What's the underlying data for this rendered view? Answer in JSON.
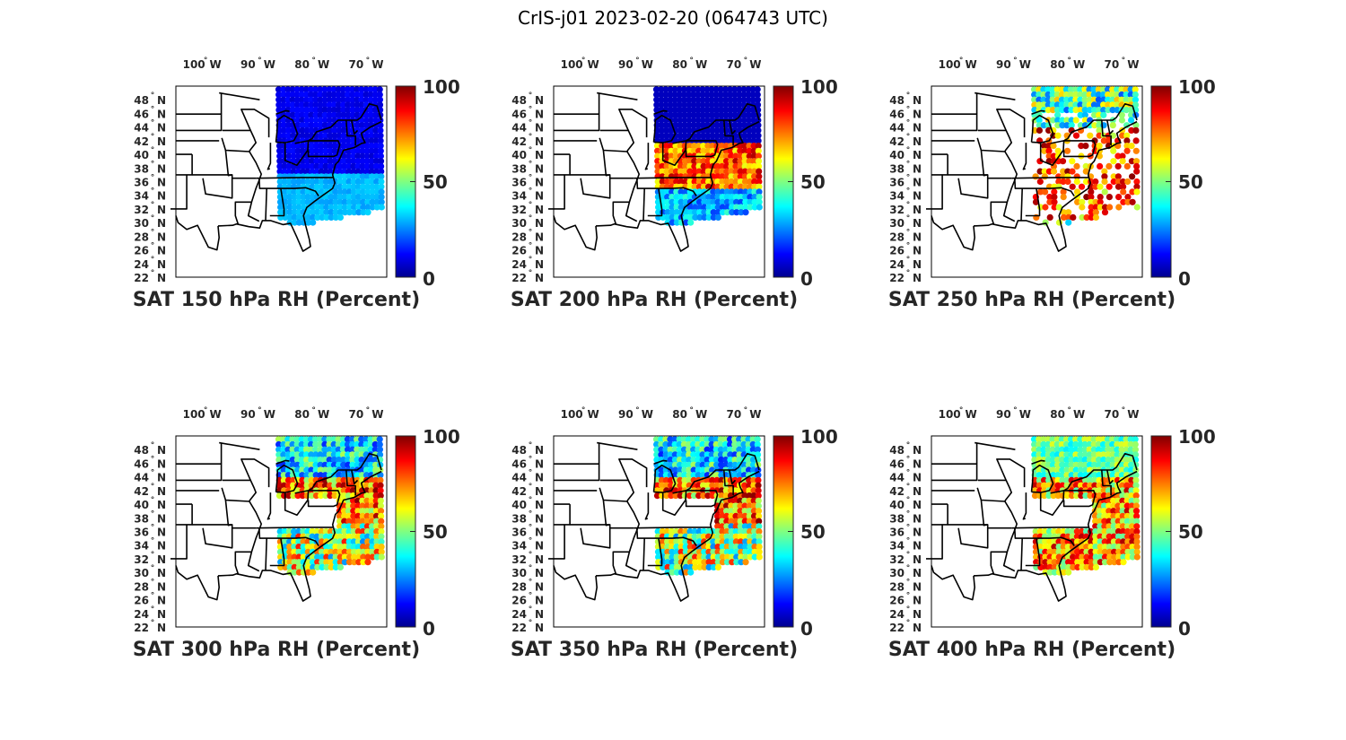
{
  "figure_title": "CrIS-j01 2023-02-20 (064743 UTC)",
  "lon_ticks": [
    {
      "deg": "100",
      "hemi": "W"
    },
    {
      "deg": "90",
      "hemi": "W"
    },
    {
      "deg": "80",
      "hemi": "W"
    },
    {
      "deg": "70",
      "hemi": "W"
    }
  ],
  "lat_ticks": [
    {
      "deg": "48",
      "hemi": "N"
    },
    {
      "deg": "46",
      "hemi": "N"
    },
    {
      "deg": "44",
      "hemi": "N"
    },
    {
      "deg": "42",
      "hemi": "N"
    },
    {
      "deg": "40",
      "hemi": "N"
    },
    {
      "deg": "38",
      "hemi": "N"
    },
    {
      "deg": "36",
      "hemi": "N"
    },
    {
      "deg": "34",
      "hemi": "N"
    },
    {
      "deg": "32",
      "hemi": "N"
    },
    {
      "deg": "30",
      "hemi": "N"
    },
    {
      "deg": "28",
      "hemi": "N"
    },
    {
      "deg": "26",
      "hemi": "N"
    },
    {
      "deg": "24",
      "hemi": "N"
    },
    {
      "deg": "22",
      "hemi": "N"
    }
  ],
  "colorbar": {
    "ticks": [
      "100",
      "50",
      "0"
    ],
    "colormap": "jet"
  },
  "panels": [
    {
      "title": "SAT 150 hPa RH (Percent)",
      "rh_level": "low"
    },
    {
      "title": "SAT 200 hPa RH (Percent)",
      "rh_level": "mixed"
    },
    {
      "title": "SAT 250 hPa RH (Percent)",
      "rh_level": "sparse-high"
    },
    {
      "title": "SAT 300 hPa RH (Percent)",
      "rh_level": "mixed-high"
    },
    {
      "title": "SAT 350 hPa RH (Percent)",
      "rh_level": "mixed-high"
    },
    {
      "title": "SAT 400 hPa RH (Percent)",
      "rh_level": "moderate"
    }
  ]
}
